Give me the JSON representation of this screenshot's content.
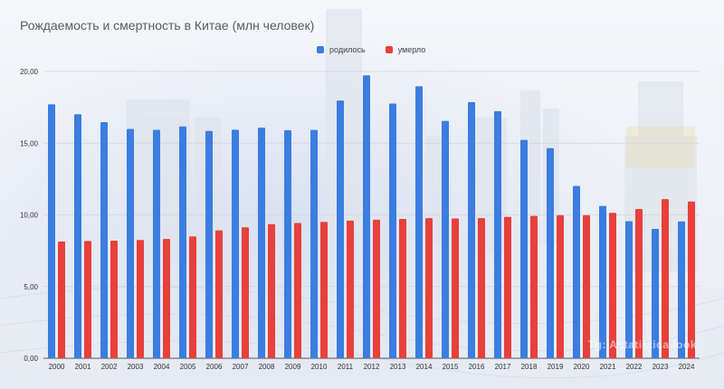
{
  "title": "Рождаемость и смертность в Китае (млн человек)",
  "legend": [
    {
      "name": "родилось",
      "color": "#3b7de0"
    },
    {
      "name": "умерло",
      "color": "#e8403a"
    }
  ],
  "watermark": "Tg: Astatistica look",
  "chart_data": {
    "type": "bar",
    "title": "Рождаемость и смертность в Китае (млн человек)",
    "xlabel": "",
    "ylabel": "",
    "ylim": [
      0,
      20
    ],
    "yticks": [
      "0,00",
      "5,00",
      "10,00",
      "15,00",
      "20,00"
    ],
    "categories": [
      "2000",
      "2001",
      "2002",
      "2003",
      "2004",
      "2005",
      "2006",
      "2007",
      "2008",
      "2009",
      "2010",
      "2011",
      "2012",
      "2013",
      "2014",
      "2015",
      "2016",
      "2017",
      "2018",
      "2019",
      "2020",
      "2021",
      "2022",
      "2023",
      "2024"
    ],
    "series": [
      {
        "name": "родилось",
        "color": "#3b7de0",
        "values": [
          17.71,
          17.02,
          16.47,
          15.99,
          15.93,
          16.17,
          15.85,
          15.94,
          16.08,
          15.91,
          15.92,
          17.97,
          19.73,
          17.76,
          18.97,
          16.55,
          17.86,
          17.23,
          15.23,
          14.65,
          12.02,
          10.62,
          9.56,
          9.02,
          9.54
        ]
      },
      {
        "name": "умерло",
        "color": "#e8403a",
        "values": [
          8.14,
          8.18,
          8.2,
          8.25,
          8.32,
          8.49,
          8.92,
          9.13,
          9.35,
          9.43,
          9.51,
          9.6,
          9.66,
          9.72,
          9.77,
          9.75,
          9.77,
          9.86,
          9.93,
          9.98,
          9.98,
          10.14,
          10.41,
          11.1,
          10.93
        ]
      }
    ],
    "grid": true,
    "legend_position": "top-center"
  }
}
